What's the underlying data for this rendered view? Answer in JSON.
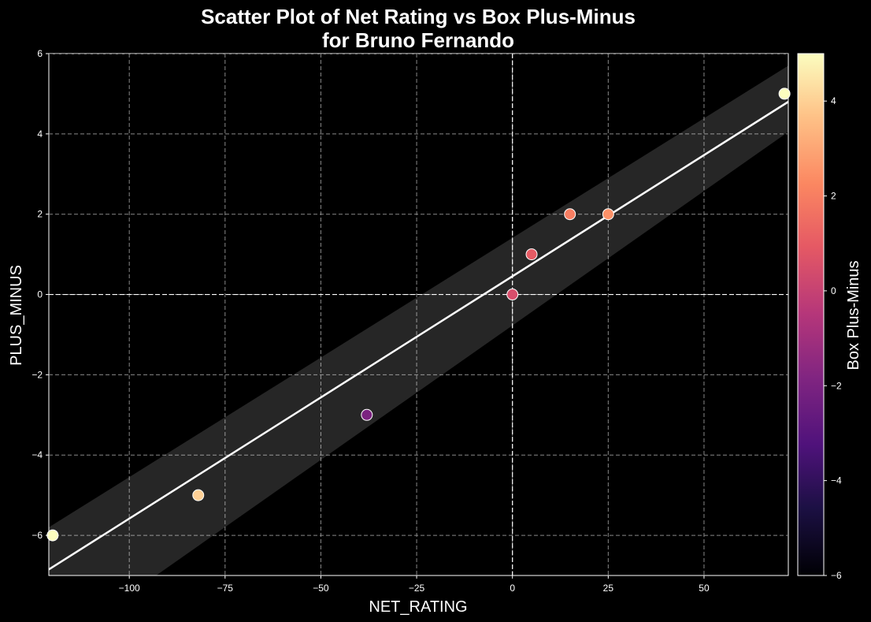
{
  "chart_data": {
    "type": "scatter",
    "title_line1": "Scatter Plot of Net Rating vs Box Plus-Minus",
    "title_line2": "for Bruno Fernando",
    "xlabel": "NET_RATING",
    "ylabel": "PLUS_MINUS",
    "xlim": [
      -121,
      72
    ],
    "ylim": [
      -7,
      6
    ],
    "x_ticks": [
      -100,
      -75,
      -50,
      -25,
      0,
      25,
      50
    ],
    "y_ticks": [
      -6,
      -4,
      -2,
      0,
      2,
      4,
      6
    ],
    "x_tick_labels": [
      "−100",
      "−75",
      "−50",
      "−25",
      "0",
      "25",
      "50"
    ],
    "y_tick_labels": [
      "−6",
      "−4",
      "−2",
      "0",
      "2",
      "4",
      "6"
    ],
    "grid": true,
    "points": [
      {
        "x": -120,
        "y": -6,
        "c": 5
      },
      {
        "x": -82,
        "y": -5,
        "c": 4
      },
      {
        "x": -38,
        "y": -3,
        "c": -2
      },
      {
        "x": 0,
        "y": 0,
        "c": 0.5
      },
      {
        "x": 5,
        "y": 1,
        "c": 1
      },
      {
        "x": 15,
        "y": 2,
        "c": 2
      },
      {
        "x": 25,
        "y": 2,
        "c": 2.5
      },
      {
        "x": 71,
        "y": 5,
        "c": 5
      }
    ],
    "regression": {
      "x": [
        -121,
        72
      ],
      "y": [
        -6.85,
        4.8
      ],
      "ci_upper": [
        -5.8,
        5.7
      ],
      "ci_lower": [
        -8.8,
        4.05
      ],
      "ci_low_x_cross": -93
    },
    "colorbar": {
      "label": "Box Plus-Minus",
      "range": [
        -6,
        5
      ],
      "ticks": [
        -6,
        -4,
        -2,
        0,
        2,
        4
      ],
      "tick_labels": [
        "−6",
        "−4",
        "−2",
        "0",
        "2",
        "4"
      ],
      "colormap": "magma"
    }
  }
}
